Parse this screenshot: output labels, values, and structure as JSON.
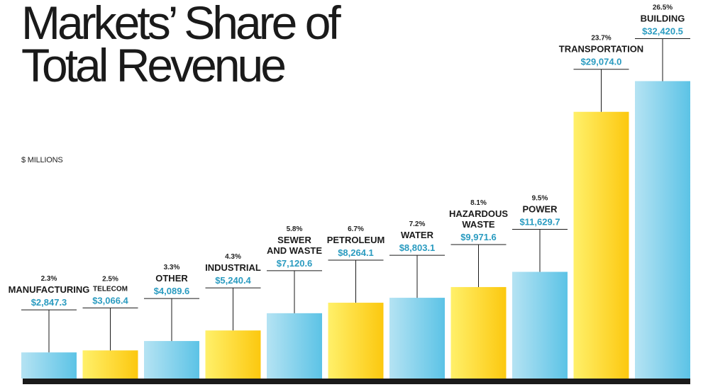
{
  "chart_data": {
    "type": "bar",
    "title": "Markets’ Share of\nTotal Revenue",
    "unit_label": "$ MILLIONS",
    "ylim": [
      0,
      34000
    ],
    "colors": {
      "blue": "#7fd0ec",
      "yellow": "#fde03a",
      "value_text": "#2a9bc0",
      "baseline": "#1a1a1a"
    },
    "categories": [
      [
        "MANUFACTURING"
      ],
      [
        "TELECOM"
      ],
      [
        "OTHER"
      ],
      [
        "INDUSTRIAL"
      ],
      [
        "SEWER",
        "AND WASTE"
      ],
      [
        "PETROLEUM"
      ],
      [
        "WATER"
      ],
      [
        "HAZARDOUS",
        "WASTE"
      ],
      [
        "POWER"
      ],
      [
        "TRANSPORTATION"
      ],
      [
        "BUILDING"
      ]
    ],
    "values": [
      2847.3,
      3066.4,
      4089.6,
      5240.4,
      7120.6,
      8264.1,
      8803.1,
      9971.6,
      11629.7,
      29074.0,
      32420.5
    ],
    "value_labels": [
      "$2,847.3",
      "$3,066.4",
      "$4,089.6",
      "$5,240.4",
      "$7,120.6",
      "$8,264.1",
      "$8,803.1",
      "$9,971.6",
      "$11,629.7",
      "$29,074.0",
      "$32,420.5"
    ],
    "percent_labels": [
      "2.3%",
      "2.5%",
      "3.3%",
      "4.3%",
      "5.8%",
      "6.7%",
      "7.2%",
      "8.1%",
      "9.5%",
      "23.7%",
      "26.5%"
    ],
    "bar_colors": [
      "blue",
      "yellow",
      "blue",
      "yellow",
      "blue",
      "yellow",
      "blue",
      "yellow",
      "blue",
      "yellow",
      "blue"
    ]
  }
}
